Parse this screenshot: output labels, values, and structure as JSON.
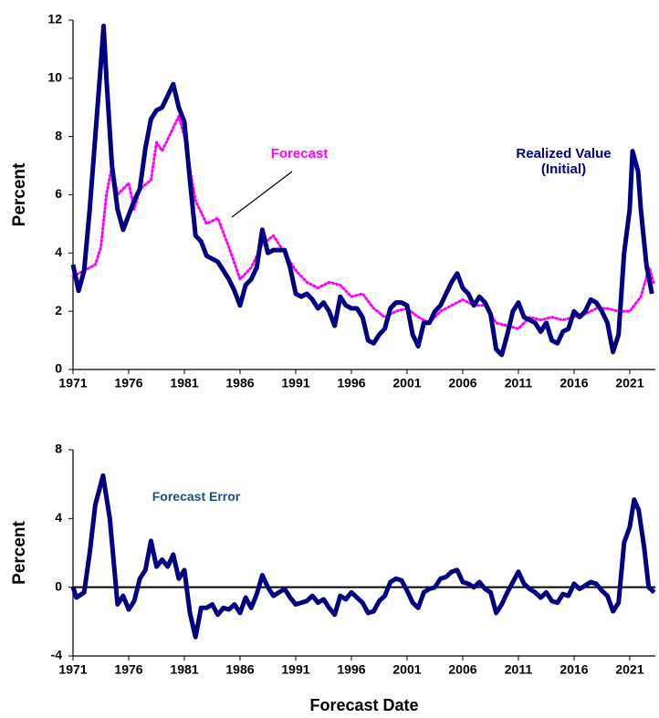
{
  "chart_data": [
    {
      "type": "line",
      "ylabel": "Percent",
      "xlim": [
        1971,
        2023.3
      ],
      "ylim": [
        0,
        12
      ],
      "xticks": [
        1971,
        1976,
        1981,
        1986,
        1991,
        1996,
        2001,
        2006,
        2011,
        2016,
        2021
      ],
      "yticks": [
        0,
        2,
        4,
        6,
        8,
        10,
        12
      ],
      "series": [
        {
          "name": "Forecast",
          "color": "#ff00ff",
          "style": "dotted",
          "x": [
            1971,
            1972,
            1973,
            1973.5,
            1974,
            1974.5,
            1975,
            1976,
            1976.5,
            1977,
            1978,
            1978.5,
            1979,
            1980,
            1980.5,
            1981,
            1982,
            1983,
            1984,
            1985,
            1986,
            1987,
            1988,
            1989,
            1990,
            1991,
            1992,
            1993,
            1994,
            1995,
            1996,
            1997,
            1998,
            1999,
            2000,
            2001,
            2002,
            2003,
            2004,
            2005,
            2006,
            2007,
            2008,
            2009,
            2010,
            2011,
            2012,
            2013,
            2014,
            2015,
            2016,
            2017,
            2018,
            2019,
            2020,
            2021,
            2022,
            2022.75,
            2023.2
          ],
          "values": [
            3.2,
            3.4,
            3.6,
            4.2,
            6,
            7.0,
            6.0,
            6.4,
            5.5,
            6.2,
            6.5,
            7.8,
            7.5,
            8.3,
            8.7,
            8.0,
            5.8,
            5.0,
            5.2,
            4.2,
            3.1,
            3.5,
            4.3,
            4.6,
            4.0,
            3.4,
            3.0,
            2.8,
            3.0,
            2.9,
            2.5,
            2.6,
            2.1,
            1.8,
            2.0,
            2.1,
            1.8,
            1.6,
            2.0,
            2.2,
            2.4,
            2.2,
            2.2,
            1.6,
            1.5,
            1.4,
            1.8,
            1.7,
            1.8,
            1.7,
            1.8,
            1.9,
            2.1,
            2.1,
            2.0,
            2.0,
            2.5,
            3.5,
            2.9
          ]
        },
        {
          "name": "Realized Value (Initial)",
          "color": "#000080",
          "style": "solid",
          "x": [
            1971,
            1971.5,
            1972,
            1972.5,
            1973,
            1973.5,
            1973.75,
            1974,
            1974.5,
            1975,
            1975.5,
            1976,
            1976.5,
            1977,
            1977.5,
            1978,
            1978.5,
            1979,
            1979.5,
            1980,
            1980.5,
            1981,
            1981.5,
            1982,
            1982.5,
            1983,
            1983.5,
            1984,
            1984.5,
            1985,
            1985.5,
            1986,
            1986.5,
            1987,
            1987.5,
            1988,
            1988.5,
            1989,
            1989.5,
            1990,
            1990.5,
            1991,
            1991.5,
            1992,
            1992.5,
            1993,
            1993.5,
            1994,
            1994.5,
            1995,
            1995.5,
            1996,
            1996.5,
            1997,
            1997.5,
            1998,
            1998.5,
            1999,
            1999.5,
            2000,
            2000.5,
            2001,
            2001.5,
            2002,
            2002.5,
            2003,
            2003.5,
            2004,
            2004.5,
            2005,
            2005.5,
            2006,
            2006.5,
            2007,
            2007.5,
            2008,
            2008.5,
            2009,
            2009.5,
            2010,
            2010.5,
            2011,
            2011.5,
            2012,
            2012.5,
            2013,
            2013.5,
            2014,
            2014.5,
            2015,
            2015.5,
            2016,
            2016.5,
            2017,
            2017.5,
            2018,
            2018.5,
            2019,
            2019.5,
            2020,
            2020.5,
            2021,
            2021.25,
            2021.75,
            2022,
            2022.5,
            2023
          ],
          "values": [
            3.6,
            2.7,
            3.4,
            5.5,
            8,
            10.5,
            11.8,
            10,
            7,
            5.5,
            4.8,
            5.3,
            5.8,
            6.2,
            7.6,
            8.6,
            8.9,
            9.0,
            9.4,
            9.8,
            9.0,
            8.5,
            6.5,
            4.6,
            4.4,
            3.9,
            3.8,
            3.7,
            3.4,
            3.1,
            2.7,
            2.2,
            2.9,
            3.1,
            3.5,
            4.8,
            4.0,
            4.1,
            4.1,
            4.1,
            3.5,
            2.6,
            2.5,
            2.6,
            2.4,
            2.1,
            2.3,
            2.0,
            1.5,
            2.5,
            2.2,
            2.1,
            2.1,
            1.8,
            1.0,
            0.9,
            1.2,
            1.4,
            2.1,
            2.3,
            2.3,
            2.2,
            1.2,
            0.8,
            1.6,
            1.6,
            2.0,
            2.2,
            2.6,
            3.0,
            3.3,
            2.8,
            2.6,
            2.2,
            2.5,
            2.3,
            1.9,
            0.7,
            0.5,
            1.2,
            2.0,
            2.3,
            1.8,
            1.7,
            1.6,
            1.3,
            1.6,
            1.0,
            0.9,
            1.3,
            1.4,
            2.0,
            1.8,
            2.0,
            2.4,
            2.3,
            2.0,
            1.6,
            0.6,
            1.2,
            4.0,
            5.5,
            7.5,
            6.8,
            5.5,
            3.6,
            2.6
          ]
        }
      ]
    },
    {
      "type": "line",
      "ylabel": "Percent",
      "xlabel": "Forecast Date",
      "xlim": [
        1971,
        2023.3
      ],
      "ylim": [
        -4,
        8
      ],
      "xticks": [
        1971,
        1976,
        1981,
        1986,
        1991,
        1996,
        2001,
        2006,
        2011,
        2016,
        2021
      ],
      "yticks": [
        -4,
        0,
        4,
        8
      ],
      "zero_line": true,
      "series": [
        {
          "name": "Forecast Error",
          "color": "#000080",
          "style": "solid",
          "x": [
            1971,
            1971.3,
            1972,
            1972.5,
            1973,
            1973.7,
            1974.3,
            1975,
            1975.5,
            1976,
            1976.5,
            1977,
            1977.5,
            1978,
            1978.5,
            1979,
            1979.5,
            1980,
            1980.5,
            1981,
            1981.5,
            1982,
            1982.5,
            1983,
            1983.5,
            1984,
            1984.5,
            1985,
            1985.5,
            1986,
            1986.5,
            1987,
            1987.5,
            1988,
            1988.5,
            1989,
            1989.5,
            1990,
            1990.5,
            1991,
            1991.5,
            1992,
            1992.5,
            1993,
            1993.5,
            1994,
            1994.5,
            1995,
            1995.5,
            1996,
            1996.5,
            1997,
            1997.5,
            1998,
            1998.5,
            1999,
            1999.5,
            2000,
            2000.5,
            2001,
            2001.5,
            2002,
            2002.5,
            2003,
            2003.5,
            2004,
            2004.5,
            2005,
            2005.5,
            2006,
            2006.5,
            2007,
            2007.5,
            2008,
            2008.5,
            2009,
            2009.5,
            2010,
            2010.5,
            2011,
            2011.5,
            2012,
            2012.5,
            2013,
            2013.5,
            2014,
            2014.5,
            2015,
            2015.5,
            2016,
            2016.5,
            2017,
            2017.5,
            2018,
            2018.5,
            2019,
            2019.5,
            2020,
            2020.5,
            2021,
            2021.4,
            2021.8,
            2022.3,
            2022.7,
            2023.2
          ],
          "values": [
            0,
            -0.6,
            -0.3,
            2,
            4.8,
            6.5,
            4,
            -1,
            -0.5,
            -1.3,
            -0.8,
            0.5,
            1,
            2.7,
            1.2,
            1.6,
            1.2,
            1.9,
            0.5,
            1,
            -1.5,
            -2.9,
            -1.2,
            -1.2,
            -1.0,
            -1.6,
            -1.2,
            -1.3,
            -1.0,
            -1.5,
            -0.6,
            -1.2,
            -0.4,
            0.7,
            0,
            -0.5,
            -0.3,
            -0.1,
            -0.6,
            -1.0,
            -0.9,
            -0.8,
            -0.5,
            -0.9,
            -0.7,
            -1.2,
            -1.6,
            -0.5,
            -0.7,
            -0.3,
            -0.6,
            -0.9,
            -1.5,
            -1.4,
            -0.8,
            -0.5,
            0.3,
            0.5,
            0.4,
            -0.2,
            -0.9,
            -1.2,
            -0.3,
            -0.1,
            0,
            0.5,
            0.6,
            0.9,
            1.0,
            0.3,
            0.2,
            0,
            0.3,
            -0.1,
            -0.3,
            -1.5,
            -1.0,
            -0.3,
            0.3,
            0.9,
            0.2,
            -0.1,
            -0.3,
            -0.6,
            -0.3,
            -0.8,
            -0.9,
            -0.4,
            -0.5,
            0.2,
            -0.1,
            0.1,
            0.3,
            0.2,
            -0.2,
            -0.5,
            -1.4,
            -0.9,
            2.6,
            3.5,
            5.1,
            4.5,
            2.3,
            0,
            -0.3
          ]
        }
      ]
    }
  ]
}
